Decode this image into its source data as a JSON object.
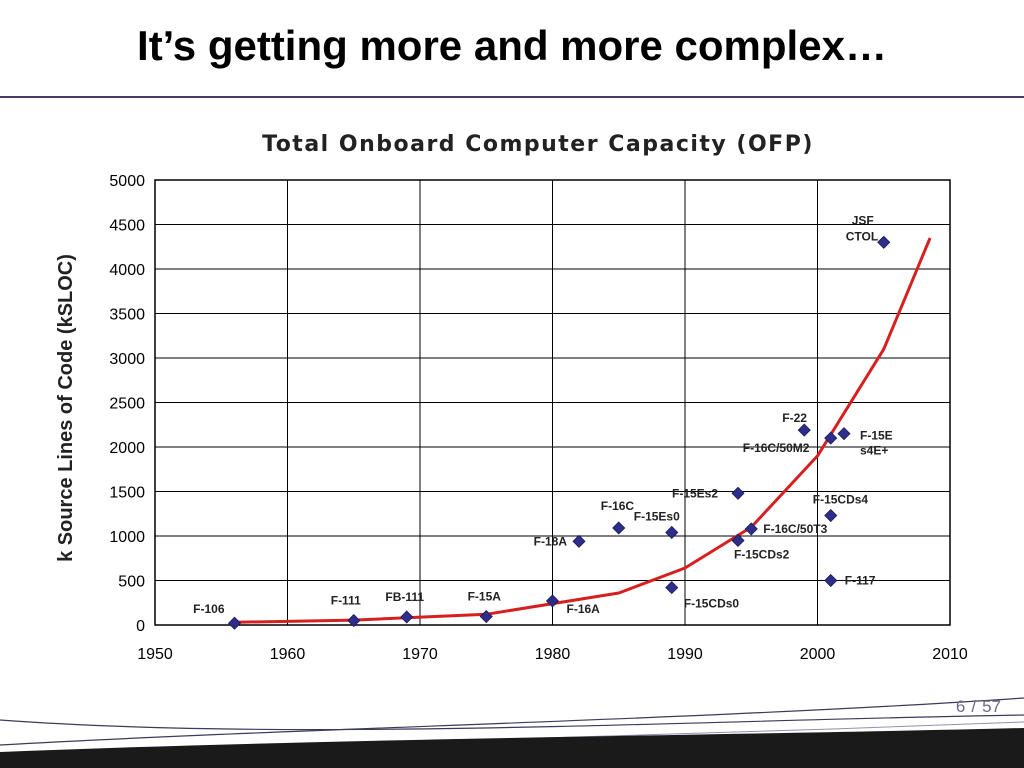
{
  "slide": {
    "title": "It’s getting more and more complex…",
    "page_current": "6",
    "page_separator": "/",
    "page_total": "57",
    "accent_color": "#4a3a6a"
  },
  "chart_data": {
    "type": "scatter",
    "title": "Total Onboard Computer Capacity (OFP)",
    "xlabel": "",
    "ylabel": "k Source Lines of Code (kSLOC)",
    "xlim": [
      1950,
      2010
    ],
    "ylim": [
      0,
      5000
    ],
    "xticks": [
      1950,
      1960,
      1970,
      1980,
      1990,
      2000,
      2010
    ],
    "yticks": [
      0,
      500,
      1000,
      1500,
      2000,
      2500,
      3000,
      3500,
      4000,
      4500,
      5000
    ],
    "grid": true,
    "marker_color": "#2e2e8a",
    "trend_color": "#d62020",
    "points": [
      {
        "label": "F-106",
        "x": 1956,
        "y": 20
      },
      {
        "label": "F-111",
        "x": 1965,
        "y": 50
      },
      {
        "label": "FB-111",
        "x": 1969,
        "y": 90
      },
      {
        "label": "F-15A",
        "x": 1975,
        "y": 95
      },
      {
        "label": "F-16A",
        "x": 1980,
        "y": 270
      },
      {
        "label": "F-18A",
        "x": 1982,
        "y": 940
      },
      {
        "label": "F-16C",
        "x": 1985,
        "y": 1090
      },
      {
        "label": "F-15Es0",
        "x": 1989,
        "y": 1040
      },
      {
        "label": "F-15CDs0",
        "x": 1989,
        "y": 420
      },
      {
        "label": "F-15Es2",
        "x": 1994,
        "y": 1480
      },
      {
        "label": "F-15CDs2",
        "x": 1994,
        "y": 950
      },
      {
        "label": "F-16C/50T3",
        "x": 1995,
        "y": 1080
      },
      {
        "label": "F-22",
        "x": 1999,
        "y": 2190
      },
      {
        "label": "F-16C/50M2",
        "x": 2001,
        "y": 2100
      },
      {
        "label": "F-15Es4E+",
        "x": 2002,
        "y": 2150
      },
      {
        "label": "F-15CDs4",
        "x": 2001,
        "y": 1230
      },
      {
        "label": "F-117",
        "x": 2001,
        "y": 500
      },
      {
        "label": "JSF CTOL",
        "x": 2005,
        "y": 4300
      }
    ],
    "trend": {
      "x": [
        1956,
        1965,
        1975,
        1985,
        1990,
        1995,
        2000,
        2005,
        2008.5
      ],
      "y": [
        30,
        55,
        120,
        360,
        640,
        1100,
        1900,
        3100,
        4350
      ]
    }
  }
}
